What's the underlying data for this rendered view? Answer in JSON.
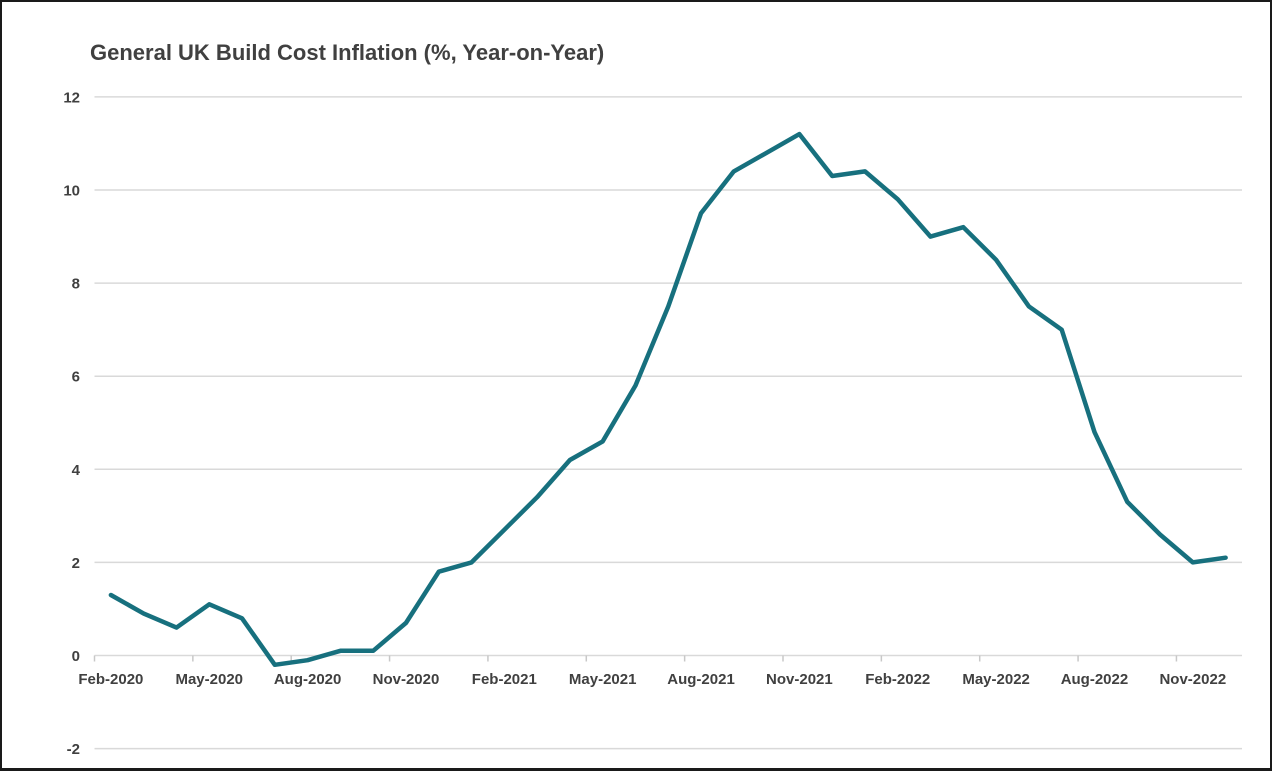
{
  "window": {
    "background": "#ffffff",
    "border_color": "#1a1a1a"
  },
  "chart_data": {
    "type": "line",
    "title": "General UK Build Cost Inflation (%, Year-on-Year)",
    "xlabel": "",
    "ylabel": "",
    "x": [
      "Feb-2020",
      "Mar-2020",
      "Apr-2020",
      "May-2020",
      "Jun-2020",
      "Jul-2020",
      "Aug-2020",
      "Sep-2020",
      "Oct-2020",
      "Nov-2020",
      "Dec-2020",
      "Jan-2021",
      "Feb-2021",
      "Mar-2021",
      "Apr-2021",
      "May-2021",
      "Jun-2021",
      "Jul-2021",
      "Aug-2021",
      "Sep-2021",
      "Oct-2021",
      "Nov-2021",
      "Dec-2021",
      "Jan-2022",
      "Feb-2022",
      "Mar-2022",
      "Apr-2022",
      "May-2022",
      "Jun-2022",
      "Jul-2022",
      "Aug-2022",
      "Sep-2022",
      "Oct-2022",
      "Nov-2022",
      "Dec-2022"
    ],
    "values": [
      1.3,
      0.9,
      0.6,
      1.1,
      0.8,
      -0.2,
      -0.1,
      0.1,
      0.1,
      0.7,
      1.8,
      2.0,
      2.7,
      3.4,
      4.2,
      4.6,
      5.8,
      7.5,
      9.5,
      10.4,
      10.8,
      11.2,
      10.3,
      10.4,
      9.8,
      9.0,
      9.2,
      8.5,
      7.5,
      7.0,
      4.8,
      3.3,
      2.6,
      2.0,
      2.1
    ],
    "x_tick_labels": [
      "Feb-2020",
      "May-2020",
      "Aug-2020",
      "Nov-2020",
      "Feb-2021",
      "May-2021",
      "Aug-2021",
      "Nov-2021",
      "Feb-2022",
      "May-2022",
      "Aug-2022",
      "Nov-2022"
    ],
    "x_tick_every_n_months": 3,
    "yticks": [
      -2,
      0,
      2,
      4,
      6,
      8,
      10,
      12
    ],
    "ylim": [
      -2,
      12
    ],
    "grid": "horizontal-only",
    "legend": "none",
    "line_color": "#17707E",
    "gridline_color": "#D9D9D9",
    "tick_color": "#C8C8C8",
    "label_color": "#404040",
    "title_color": "#404040"
  }
}
